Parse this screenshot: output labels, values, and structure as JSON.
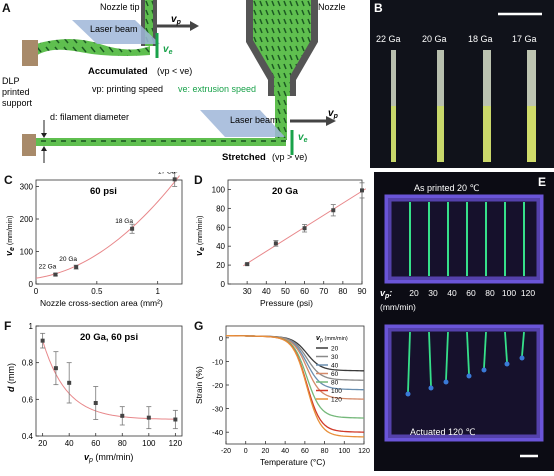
{
  "panel_labels": [
    "A",
    "B",
    "C",
    "D",
    "E",
    "F",
    "G"
  ],
  "panel_a": {
    "nozzle_tip": "Nozzle tip",
    "nozzle": "Nozzle",
    "laser_beam_top": "Laser beam",
    "laser_beam_bottom": "Laser beam",
    "vp": "v",
    "vp_sub": "p",
    "ve": "v",
    "ve_sub": "e",
    "accumulated": "Accumulated",
    "accumulated_cond": "(vp < ve)",
    "dlp_support": "DLP printed support",
    "vp_def": "vp: printing speed",
    "ve_def": "ve: extrusion speed",
    "d_def": "d: filament diameter",
    "stretched": "Stretched",
    "stretched_cond": "(vp > ve)",
    "colors": {
      "filament": "#5fbf4f",
      "fiber_dash": "#1c5a22",
      "laser": "#9fb6d8",
      "nozzle": "#555555",
      "support": "#a88a6a",
      "ve_green": "#19a24a"
    }
  },
  "panel_b": {
    "gauges": [
      "22 Ga",
      "20 Ga",
      "18 Ga",
      "17 Ga"
    ],
    "bg": "#10121a"
  },
  "panel_e": {
    "as_printed": "As printed  20 ℃",
    "vp_label": "v",
    "vp_sub": "p",
    "speeds": [
      "20",
      "30",
      "40",
      "60",
      "80",
      "100",
      "120"
    ],
    "unit": "(mm/min)",
    "actuated": "Actuated  120 ℃",
    "frame_color": "#6a55d8",
    "fiber_color": "#36e08a"
  },
  "chart_data": [
    {
      "panel": "C",
      "type": "scatter",
      "title": "60 psi",
      "xlabel": "Nozzle cross-section area (mm²)",
      "ylabel": "ve (mm/min)",
      "xlim": [
        0,
        1.2
      ],
      "ylim": [
        0,
        320
      ],
      "xticks": [
        "0",
        "0.5",
        "1"
      ],
      "yticks": [
        "0",
        "100",
        "200",
        "300"
      ],
      "x": [
        0.16,
        0.33,
        0.79,
        1.14
      ],
      "y": [
        29,
        52,
        170,
        322
      ],
      "err": [
        4,
        6,
        14,
        22
      ],
      "point_labels": [
        "22 Ga",
        "20 Ga",
        "18 Ga",
        "17 Ga"
      ],
      "fit": "curve"
    },
    {
      "panel": "D",
      "type": "scatter",
      "title": "20 Ga",
      "xlabel": "Pressure (psi)",
      "ylabel": "ve (mm/min)",
      "xlim": [
        20,
        90
      ],
      "ylim": [
        0,
        110
      ],
      "xticks": [
        "30",
        "40",
        "50",
        "60",
        "70",
        "80",
        "90"
      ],
      "yticks": [
        "0",
        "20",
        "40",
        "60",
        "80",
        "100"
      ],
      "x": [
        30,
        45,
        60,
        75,
        90
      ],
      "y": [
        21,
        43,
        59,
        78,
        99
      ],
      "err": [
        1,
        3,
        4,
        6,
        8
      ],
      "fit": "linear"
    },
    {
      "panel": "F",
      "type": "scatter",
      "title": "20 Ga, 60 psi",
      "xlabel": "vp (mm/min)",
      "ylabel": "d (mm)",
      "xlim": [
        15,
        125
      ],
      "ylim": [
        0.4,
        1.0
      ],
      "xticks": [
        "20",
        "40",
        "60",
        "80",
        "100",
        "120"
      ],
      "yticks": [
        "0.4",
        "0.6",
        "0.8",
        "1"
      ],
      "x": [
        20,
        30,
        40,
        60,
        80,
        100,
        120
      ],
      "y": [
        0.92,
        0.77,
        0.69,
        0.58,
        0.51,
        0.5,
        0.49
      ],
      "err": [
        0.04,
        0.09,
        0.11,
        0.09,
        0.05,
        0.06,
        0.05
      ],
      "fit": "curve"
    },
    {
      "panel": "G",
      "type": "line",
      "xlabel": "Temperature (°C)",
      "ylabel": "Strain (%)",
      "xlim": [
        -20,
        120
      ],
      "ylim": [
        -45,
        5
      ],
      "xticks": [
        "-20",
        "0",
        "20",
        "40",
        "60",
        "80",
        "100",
        "120"
      ],
      "yticks": [
        "0",
        "-10",
        "-20",
        "-30",
        "-40"
      ],
      "legend_title": "vp (mm/min)",
      "series": [
        {
          "name": "20",
          "color": "#3a3a3a",
          "plateau": -14
        },
        {
          "name": "30",
          "color": "#8a8a8a",
          "plateau": -18
        },
        {
          "name": "40",
          "color": "#6a8fb0",
          "plateau": -22
        },
        {
          "name": "60",
          "color": "#d58a6a",
          "plateau": -26
        },
        {
          "name": "80",
          "color": "#74b87a",
          "plateau": -34
        },
        {
          "name": "100",
          "color": "#d03a2a",
          "plateau": -40
        },
        {
          "name": "120",
          "color": "#e8903a",
          "plateau": -42
        }
      ]
    }
  ]
}
